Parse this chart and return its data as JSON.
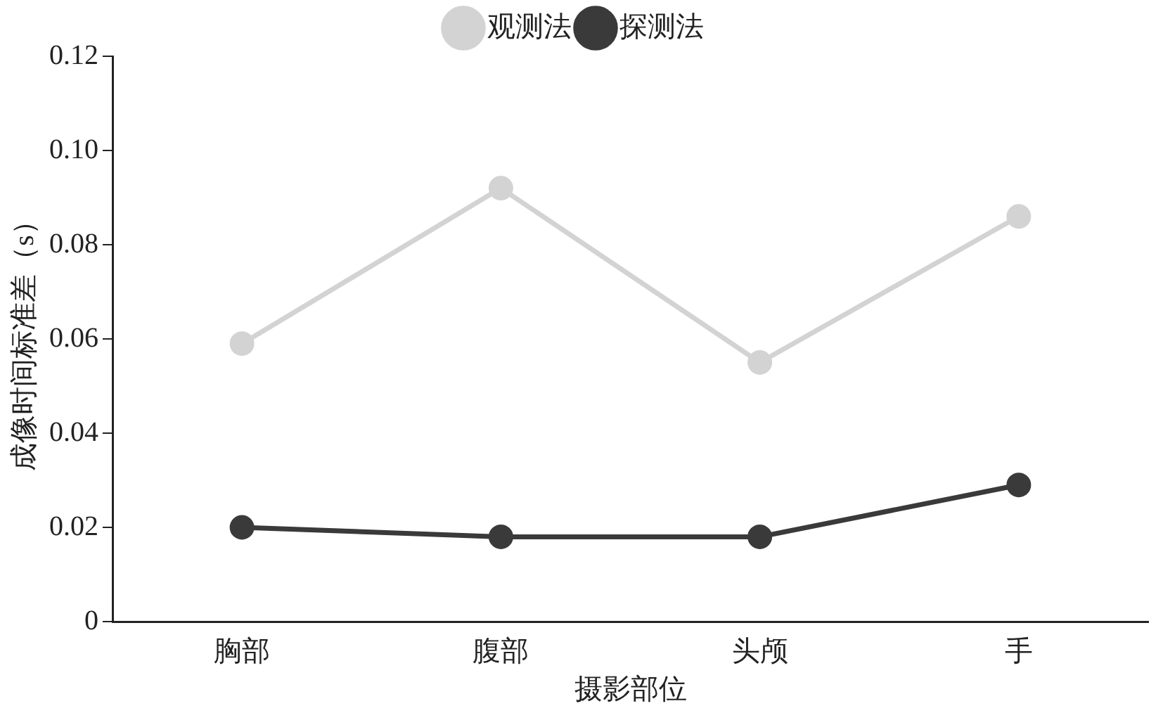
{
  "chart_data": {
    "type": "line",
    "xlabel": "摄影部位",
    "ylabel": "成像时间标准差（s）",
    "categories": [
      "胸部",
      "腹部",
      "头颅",
      "手"
    ],
    "series": [
      {
        "name": "观测法",
        "color": "#d3d3d3",
        "values": [
          0.059,
          0.092,
          0.055,
          0.086
        ]
      },
      {
        "name": "探测法",
        "color": "#3a3a3a",
        "values": [
          0.02,
          0.018,
          0.018,
          0.029
        ]
      }
    ],
    "ylim": [
      0,
      0.12
    ],
    "yticks": [
      0,
      {
        "value": 0.02,
        "label": "0.02"
      },
      {
        "value": 0.04,
        "label": "0.04"
      },
      {
        "value": 0.06,
        "label": "0.06"
      },
      {
        "value": 0.08,
        "label": "0.08"
      },
      {
        "value": 0.1,
        "label": "0.10"
      },
      {
        "value": 0.12,
        "label": "0.12"
      }
    ],
    "grid": false,
    "legend": "top",
    "marker": "circle",
    "line_style": "solid"
  }
}
